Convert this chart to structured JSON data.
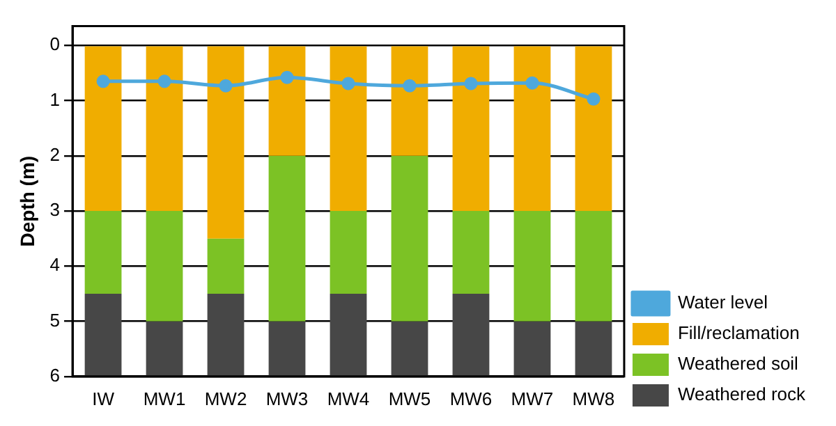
{
  "chart_data": {
    "type": "bar",
    "stacked": true,
    "ylabel": "Depth (m)",
    "categories": [
      "IW",
      "MW1",
      "MW2",
      "MW3",
      "MW4",
      "MW5",
      "MW6",
      "MW7",
      "MW8"
    ],
    "series": [
      {
        "name": "Water level",
        "type": "line",
        "color": "#4ea8dc",
        "values": [
          0.65,
          0.65,
          0.73,
          0.58,
          0.69,
          0.73,
          0.69,
          0.68,
          0.97
        ]
      },
      {
        "name": "Fill/reclamation",
        "color": "#f0ad00",
        "values": [
          3,
          3,
          3.5,
          2,
          3,
          2,
          3,
          3,
          3
        ]
      },
      {
        "name": "Weathered soil",
        "color": "#7cc225",
        "values": [
          1.5,
          2,
          1,
          3,
          1.5,
          3,
          1.5,
          2,
          2
        ]
      },
      {
        "name": "Weathered rock",
        "color": "#474747",
        "values": [
          1.5,
          1,
          1.5,
          1,
          1.5,
          1,
          1.5,
          1,
          1
        ]
      }
    ],
    "ylim": [
      6,
      -0.35
    ],
    "yticks": [
      0,
      1,
      2,
      3,
      4,
      5,
      6
    ],
    "grid": "y",
    "legend": "right",
    "marker": "circle",
    "line_style": "solid"
  }
}
